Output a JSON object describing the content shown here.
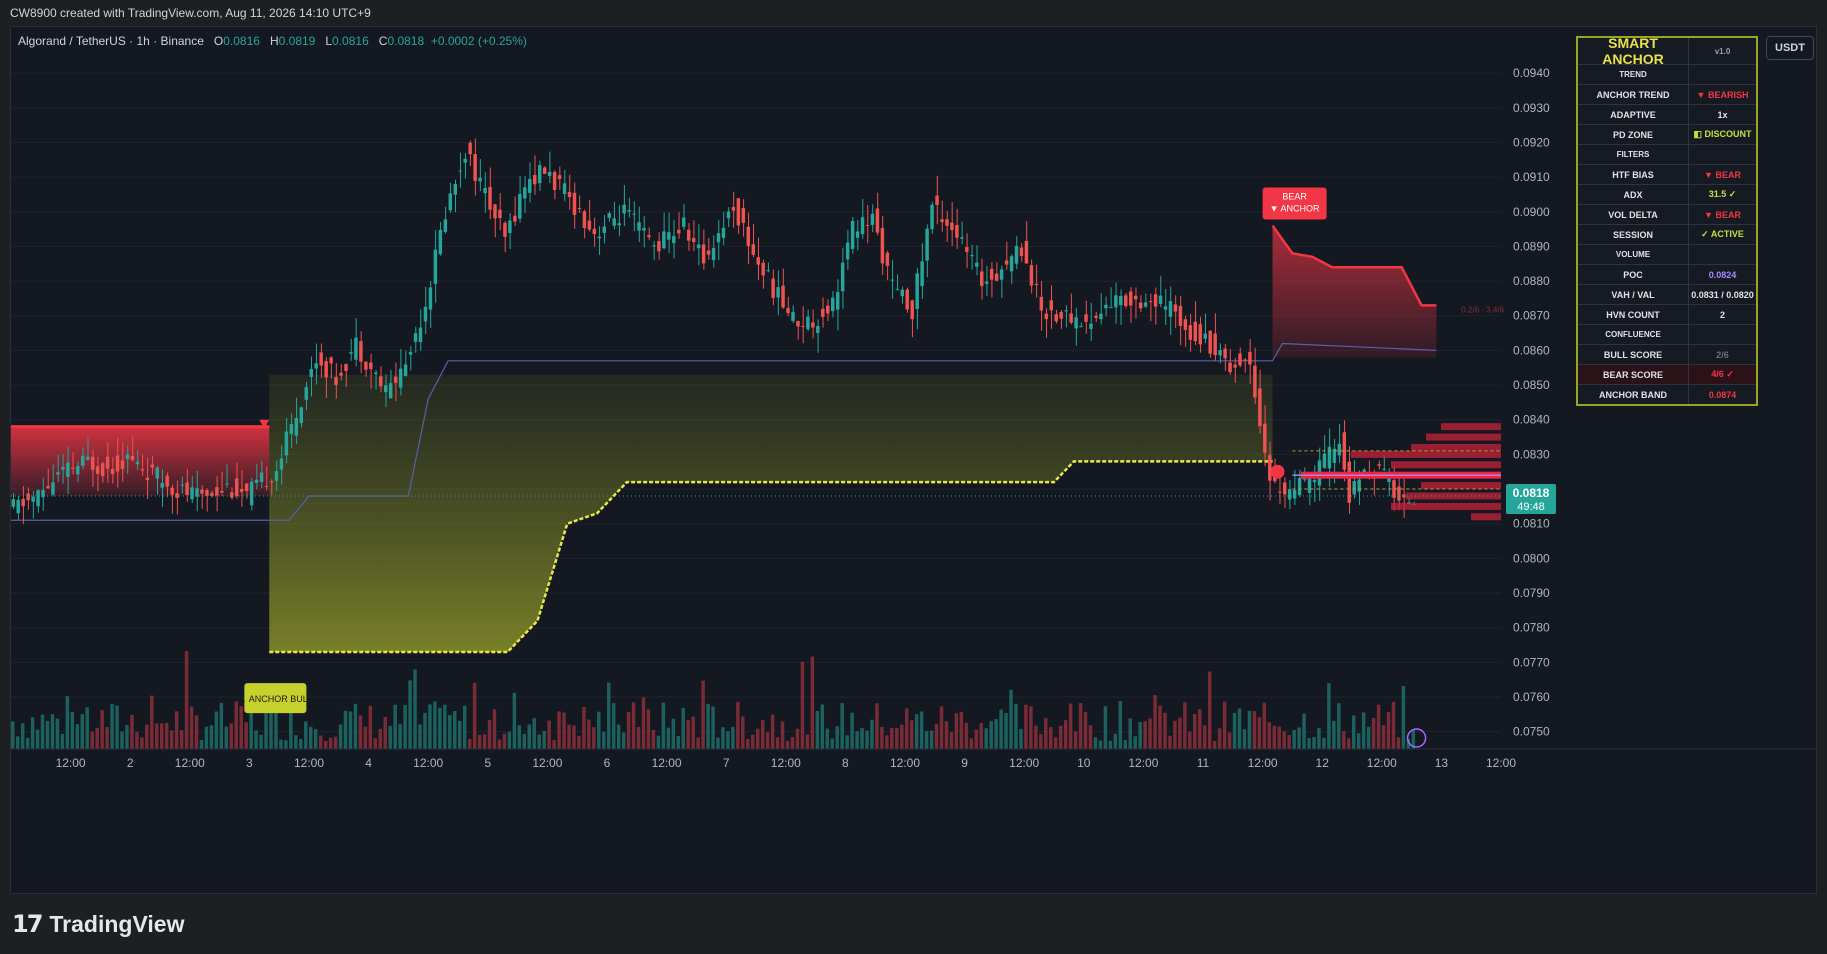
{
  "header": "CW8900 created with TradingView.com, Aug 11, 2026 14:10 UTC+9",
  "symbol": {
    "name": "Algorand / TetherUS · 1h · Binance",
    "o_label": "O",
    "o": "0.0816",
    "h_label": "H",
    "h": "0.0819",
    "l_label": "L",
    "l": "0.0816",
    "c_label": "C",
    "c": "0.0818",
    "change": "+0.0002 (+0.25%)"
  },
  "currency_button": "USDT",
  "price_tag": {
    "value": "0.0818",
    "countdown": "49:48"
  },
  "footer_brand": "TradingView",
  "labels": {
    "anchor_bull": "▲ ANCHOR BULL",
    "bear_anchor_1": "BEAR",
    "bear_anchor_2": "▼ ANCHOR",
    "pct_note": "0.2/6 · 3.4/6"
  },
  "panel": {
    "title": "SMART ANCHOR",
    "version": "v1.0",
    "rows": [
      {
        "label": "TREND",
        "value": "",
        "kind": "section"
      },
      {
        "label": "ANCHOR TREND",
        "value": "▼ BEARISH",
        "color": "red"
      },
      {
        "label": "ADAPTIVE",
        "value": "1x",
        "color": "white"
      },
      {
        "label": "PD ZONE",
        "value": "◧ DISCOUNT",
        "color": "green"
      },
      {
        "label": "FILTERS",
        "value": "",
        "kind": "section"
      },
      {
        "label": "HTF BIAS",
        "value": "▼ BEAR",
        "color": "red"
      },
      {
        "label": "ADX",
        "value": "31.5 ✓",
        "color": "green"
      },
      {
        "label": "VOL DELTA",
        "value": "▼ BEAR",
        "color": "red"
      },
      {
        "label": "SESSION",
        "value": "✓ ACTIVE",
        "color": "green"
      },
      {
        "label": "VOLUME",
        "value": "",
        "kind": "section"
      },
      {
        "label": "POC",
        "value": "0.0824",
        "color": "violet"
      },
      {
        "label": "VAH / VAL",
        "value": "0.0831 / 0.0820",
        "color": "white"
      },
      {
        "label": "HVN COUNT",
        "value": "2",
        "color": "white"
      },
      {
        "label": "CONFLUENCE",
        "value": "",
        "kind": "section"
      },
      {
        "label": "BULL SCORE",
        "value": "2/6",
        "color": "dim"
      },
      {
        "label": "BEAR SCORE",
        "value": "4/6 ✓",
        "color": "red",
        "highlight": true
      },
      {
        "label": "ANCHOR BAND",
        "value": "0.0874",
        "color": "red"
      }
    ]
  },
  "chart_data": {
    "type": "candlestick",
    "title": "",
    "y_axis": {
      "ticks": [
        "0.0940",
        "0.0930",
        "0.0920",
        "0.0910",
        "0.0900",
        "0.0890",
        "0.0880",
        "0.0870",
        "0.0860",
        "0.0850",
        "0.0840",
        "0.0830",
        "0.0820",
        "0.0810",
        "0.0800",
        "0.0790",
        "0.0780",
        "0.0770",
        "0.0760",
        "0.0750"
      ],
      "range": [
        0.0745,
        0.0951
      ]
    },
    "x_axis": {
      "ticks": [
        "12:00",
        "2",
        "12:00",
        "3",
        "12:00",
        "4",
        "12:00",
        "5",
        "12:00",
        "6",
        "12:00",
        "7",
        "12:00",
        "8",
        "12:00",
        "9",
        "12:00",
        "10",
        "12:00",
        "11",
        "12:00",
        "12",
        "12:00",
        "13",
        "12:00"
      ],
      "range_hours": [
        0,
        300
      ]
    },
    "price_path": [
      [
        0,
        0.0814
      ],
      [
        6,
        0.0818
      ],
      [
        10,
        0.0824
      ],
      [
        16,
        0.0828
      ],
      [
        20,
        0.0826
      ],
      [
        24,
        0.0829
      ],
      [
        28,
        0.0825
      ],
      [
        34,
        0.082
      ],
      [
        38,
        0.0818
      ],
      [
        44,
        0.0821
      ],
      [
        48,
        0.0818
      ],
      [
        54,
        0.0826
      ],
      [
        58,
        0.0842
      ],
      [
        62,
        0.0858
      ],
      [
        66,
        0.0852
      ],
      [
        70,
        0.0862
      ],
      [
        76,
        0.0848
      ],
      [
        80,
        0.0856
      ],
      [
        84,
        0.0874
      ],
      [
        88,
        0.09
      ],
      [
        92,
        0.0918
      ],
      [
        96,
        0.0905
      ],
      [
        100,
        0.0892
      ],
      [
        104,
        0.0908
      ],
      [
        108,
        0.0912
      ],
      [
        114,
        0.0902
      ],
      [
        118,
        0.0894
      ],
      [
        124,
        0.09
      ],
      [
        130,
        0.089
      ],
      [
        136,
        0.0896
      ],
      [
        140,
        0.0886
      ],
      [
        146,
        0.0902
      ],
      [
        150,
        0.0888
      ],
      [
        154,
        0.0878
      ],
      [
        158,
        0.0869
      ],
      [
        162,
        0.0868
      ],
      [
        166,
        0.0874
      ],
      [
        170,
        0.0895
      ],
      [
        174,
        0.0898
      ],
      [
        178,
        0.0878
      ],
      [
        182,
        0.0872
      ],
      [
        186,
        0.0902
      ],
      [
        190,
        0.0896
      ],
      [
        196,
        0.088
      ],
      [
        200,
        0.0884
      ],
      [
        204,
        0.089
      ],
      [
        208,
        0.0872
      ],
      [
        212,
        0.087
      ],
      [
        218,
        0.0868
      ],
      [
        222,
        0.0874
      ],
      [
        228,
        0.0875
      ],
      [
        234,
        0.0872
      ],
      [
        238,
        0.0866
      ],
      [
        242,
        0.0862
      ],
      [
        246,
        0.0856
      ],
      [
        250,
        0.0857
      ],
      [
        252,
        0.084
      ],
      [
        254,
        0.0822
      ],
      [
        258,
        0.0819
      ],
      [
        262,
        0.0822
      ],
      [
        264,
        0.0826
      ],
      [
        268,
        0.0834
      ],
      [
        270,
        0.0818
      ],
      [
        274,
        0.0826
      ],
      [
        278,
        0.0823
      ],
      [
        280,
        0.0816
      ],
      [
        283,
        0.0818
      ]
    ],
    "anchor_bull_band": [
      [
        52,
        0.0773
      ],
      [
        100,
        0.0773
      ],
      [
        106,
        0.0782
      ],
      [
        112,
        0.081
      ],
      [
        118,
        0.0813
      ],
      [
        124,
        0.0822
      ],
      [
        210,
        0.0822
      ],
      [
        214,
        0.0828
      ],
      [
        254,
        0.0828
      ]
    ],
    "anchor_bear_band": [
      [
        254,
        0.0896
      ],
      [
        258,
        0.0888
      ],
      [
        262,
        0.0887
      ],
      [
        266,
        0.0884
      ],
      [
        280,
        0.0884
      ],
      [
        284,
        0.0873
      ],
      [
        287,
        0.0873
      ]
    ],
    "bear_zone_left": [
      0,
      52,
      0.0838,
      0.0818
    ],
    "median_line": [
      [
        0,
        0.0811
      ],
      [
        56,
        0.0811
      ],
      [
        60,
        0.0818
      ],
      [
        80,
        0.0818
      ],
      [
        84,
        0.0846
      ],
      [
        88,
        0.0857
      ],
      [
        254,
        0.0857
      ],
      [
        256,
        0.0862
      ],
      [
        287,
        0.086
      ]
    ],
    "poc": 0.0824,
    "vah": 0.0831,
    "val": 0.082,
    "last_price": 0.0818
  }
}
